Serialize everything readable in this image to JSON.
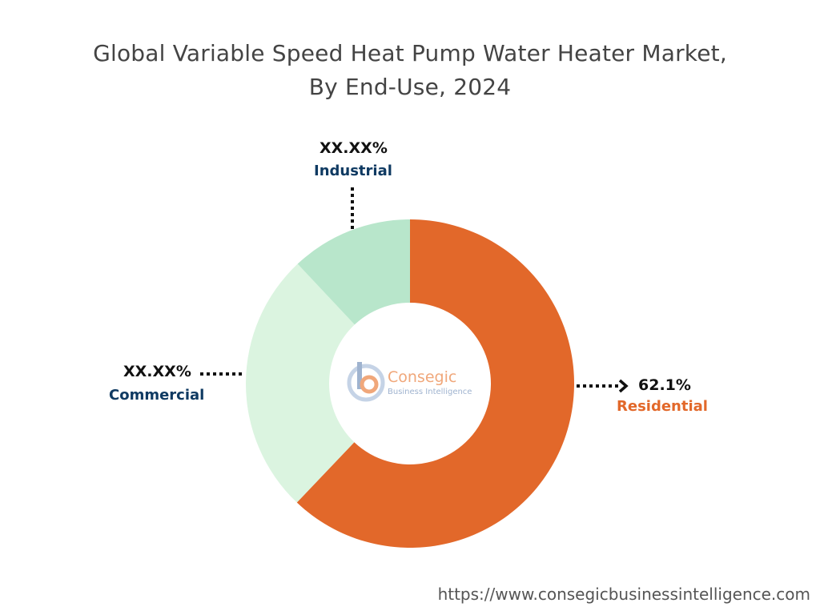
{
  "chart_data": {
    "type": "pie",
    "variant": "donut",
    "title_lines": [
      "Global Variable Speed Heat Pump Water Heater Market,",
      "By End-Use, 2024"
    ],
    "categories": [
      "Residential",
      "Commercial",
      "Industrial"
    ],
    "values": [
      62.1,
      25.9,
      12.0
    ],
    "value_labels": [
      "62.1%",
      "XX.XX%",
      "XX.XX%"
    ],
    "colors": [
      "#e2682a",
      "#dbf4e0",
      "#b8e6cb"
    ],
    "label_colors": [
      "#e2682a",
      "#0f3a62",
      "#0f3a62"
    ]
  },
  "logo": {
    "name": "Consegic",
    "subtitle": "Business Intelligence"
  },
  "footer": {
    "url": "https://www.consegicbusinessintelligence.com"
  }
}
